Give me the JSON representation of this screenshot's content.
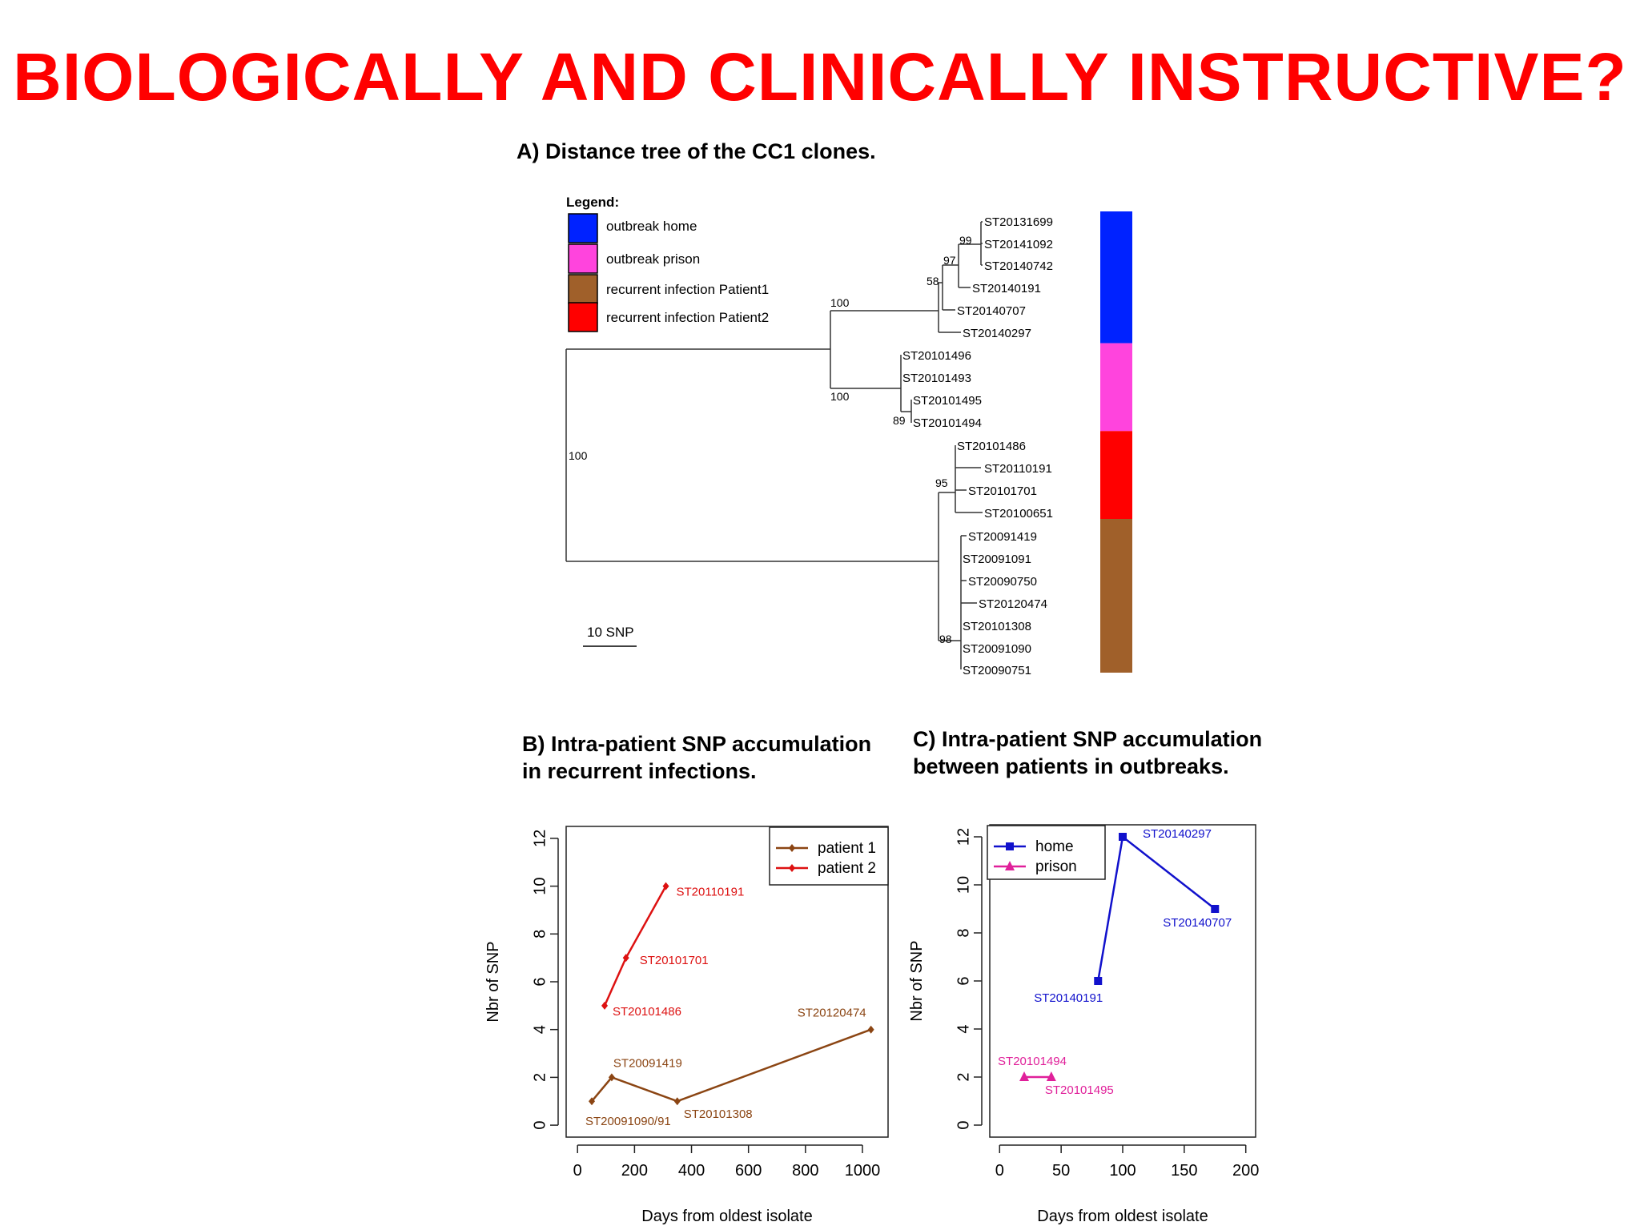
{
  "title": "BIOLOGICALLY AND CLINICALLY INSTRUCTIVE?",
  "panelA": {
    "title": "A) Distance tree of the CC1 clones.",
    "legend_title": "Legend:",
    "legend": [
      {
        "label": "outbreak home",
        "color": "#0022ff"
      },
      {
        "label": "outbreak prison",
        "color": "#ff44dd"
      },
      {
        "label": "recurrent infection Patient1",
        "color": "#a0602a"
      },
      {
        "label": "recurrent infection Patient2",
        "color": "#ff0000"
      }
    ],
    "scale_label": "10 SNP",
    "leaves": [
      "ST20131699",
      "ST20141092",
      "ST20140742",
      "ST20140191",
      "ST20140707",
      "ST20140297",
      "ST20101496",
      "ST20101493",
      "ST20101495",
      "ST20101494",
      "ST20101486",
      "ST20110191",
      "ST20101701",
      "ST20100651",
      "ST20091419",
      "ST20091091",
      "ST20090750",
      "ST20120474",
      "ST20101308",
      "ST20091090",
      "ST20090751"
    ],
    "bootstrap": [
      "99",
      "97",
      "58",
      "100",
      "100",
      "89",
      "100",
      "95",
      "98"
    ],
    "color_bar": [
      {
        "group": "outbreak home",
        "color": "#0022ff",
        "count": 6
      },
      {
        "group": "outbreak prison",
        "color": "#ff44dd",
        "count": 4
      },
      {
        "group": "recurrent infection Patient2",
        "color": "#ff0000",
        "count": 4
      },
      {
        "group": "recurrent infection Patient1",
        "color": "#a0602a",
        "count": 7
      }
    ]
  },
  "chart_data": [
    {
      "type": "line",
      "title_line1": "B) Intra-patient SNP accumulation",
      "title_line2": "in recurrent infections.",
      "xlabel": "Days from oldest isolate",
      "ylabel": "Nbr of SNP",
      "xlim": [
        -40,
        1090
      ],
      "ylim": [
        -0.5,
        12.5
      ],
      "xticks": [
        0,
        200,
        400,
        600,
        800,
        1000
      ],
      "yticks": [
        0,
        2,
        4,
        6,
        8,
        10,
        12
      ],
      "legend": [
        "patient 1",
        "patient 2"
      ],
      "series": [
        {
          "name": "patient 1",
          "color": "#8b4513",
          "marker": "diamond",
          "points": [
            [
              50,
              1
            ],
            [
              120,
              2
            ],
            [
              350,
              1
            ],
            [
              1030,
              4
            ]
          ],
          "labels": [
            "ST20091090/91",
            "ST20091419",
            "ST20101308",
            "ST20120474"
          ]
        },
        {
          "name": "patient 2",
          "color": "#dd1111",
          "marker": "diamond",
          "points": [
            [
              95,
              5
            ],
            [
              170,
              7
            ],
            [
              310,
              10
            ]
          ],
          "labels": [
            "ST20101486",
            "ST20101701",
            "ST20110191"
          ]
        }
      ]
    },
    {
      "type": "line",
      "title_line1": "C) Intra-patient SNP accumulation",
      "title_line2": "between patients in outbreaks.",
      "xlabel": "Days from oldest isolate",
      "ylabel": "Nbr of SNP",
      "xlim": [
        -8,
        208
      ],
      "ylim": [
        -0.5,
        12.5
      ],
      "xticks": [
        0,
        50,
        100,
        150,
        200
      ],
      "yticks": [
        0,
        2,
        4,
        6,
        8,
        10,
        12
      ],
      "legend": [
        "home",
        "prison"
      ],
      "series": [
        {
          "name": "home",
          "color": "#1111cc",
          "marker": "square",
          "points": [
            [
              80,
              6
            ],
            [
              100,
              12
            ],
            [
              175,
              9
            ]
          ],
          "labels": [
            "ST20140191",
            "ST20140297",
            "ST20140707"
          ]
        },
        {
          "name": "prison",
          "color": "#e0209a",
          "marker": "triangle",
          "points": [
            [
              20,
              2
            ],
            [
              42,
              2
            ]
          ],
          "labels": [
            "ST20101494",
            "ST20101495"
          ]
        }
      ]
    }
  ]
}
